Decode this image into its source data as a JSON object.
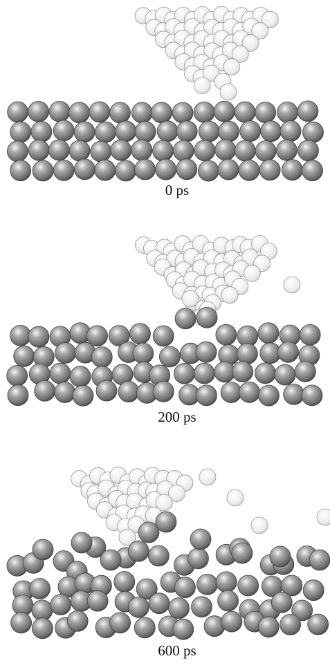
{
  "panels": [
    {
      "label": "0 ps"
    },
    {
      "label": "200 ps"
    },
    {
      "label": "600 ps"
    }
  ]
}
